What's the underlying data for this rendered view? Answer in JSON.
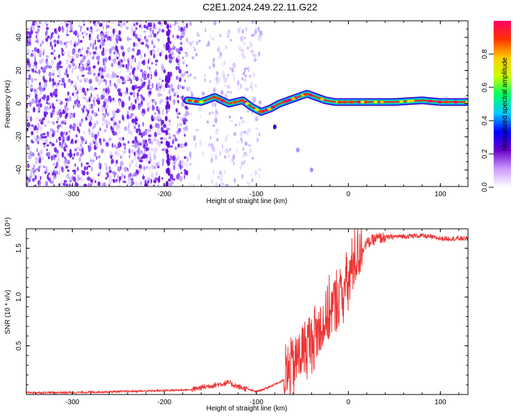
{
  "title": "C2E1.2024.249.22.11.G22",
  "chart_data": [
    {
      "type": "heatmap",
      "xlabel": "Height of straight line (km)",
      "ylabel": "Frequency (Hz)",
      "xlim": [
        -350,
        130
      ],
      "ylim": [
        -50,
        50
      ],
      "x_ticks": [
        -300,
        -200,
        -100,
        0,
        100
      ],
      "y_ticks": [
        -40,
        -20,
        0,
        20,
        40
      ],
      "colorbar": {
        "label": "Normalized spectral amplitude",
        "range": [
          0,
          1
        ],
        "ticks": [
          "0.0",
          "0.2",
          "0.4",
          "0.6",
          "0.8"
        ],
        "colors": [
          "#ffffff",
          "#cc99ff",
          "#6600cc",
          "#0000ff",
          "#00ccff",
          "#00ff66",
          "#ccff00",
          "#ffcc00",
          "#ff3300",
          "#ff0066"
        ]
      },
      "noise_region_km": [
        -350,
        -95
      ],
      "signal_trace": {
        "x": [
          -175,
          -160,
          -145,
          -130,
          -115,
          -105,
          -95,
          -85,
          -75,
          -65,
          -55,
          -45,
          -35,
          -25,
          -15,
          -5,
          0,
          20,
          50,
          80,
          100,
          130
        ],
        "y": [
          2,
          1,
          4,
          0,
          2,
          -2,
          -5,
          -3,
          0,
          2,
          4,
          6,
          4,
          2,
          1,
          1,
          1,
          1,
          1,
          2,
          1,
          1
        ]
      },
      "faint_branch": {
        "x": [
          -80,
          -55,
          -40
        ],
        "y": [
          -14,
          -28,
          -40
        ]
      }
    },
    {
      "type": "line",
      "xlabel": "Height of straight line (km)",
      "ylabel": "SNR (10 * v/v)",
      "y_multiplier": "(x10⁴)",
      "xlim": [
        -350,
        130
      ],
      "ylim": [
        0,
        1.7
      ],
      "x_ticks": [
        -300,
        -200,
        -100,
        0,
        100
      ],
      "y_ticks": [
        "0.5",
        "1.0",
        "1.5"
      ],
      "color": "#ee3333",
      "series": [
        {
          "x": [
            -350,
            -300,
            -250,
            -200,
            -170,
            -160,
            -150,
            -130,
            -120,
            -100,
            -90,
            -70,
            -60,
            -50,
            -40,
            -30,
            -20,
            -10,
            0,
            5,
            10,
            20,
            30,
            50,
            80,
            100,
            130
          ],
          "y": [
            0.02,
            0.02,
            0.03,
            0.04,
            0.05,
            0.07,
            0.09,
            0.12,
            0.08,
            0.03,
            0.06,
            0.15,
            0.3,
            0.45,
            0.55,
            0.7,
            0.85,
            1.0,
            1.15,
            1.35,
            1.45,
            1.55,
            1.6,
            1.62,
            1.63,
            1.6,
            1.6
          ]
        }
      ]
    }
  ]
}
